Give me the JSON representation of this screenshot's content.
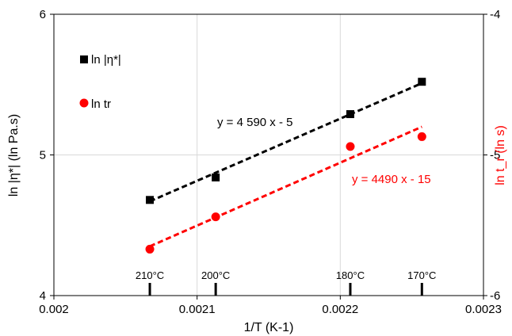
{
  "chart_data": {
    "type": "scatter",
    "xlabel": "1/T (K-1)",
    "ylabel": "ln |η*|  (ln Pa.s)",
    "y2label": "ln t_r (ln s)",
    "xlim": [
      0.002,
      0.0023
    ],
    "ylim": [
      4,
      6
    ],
    "y2lim": [
      -6,
      -4
    ],
    "grid": true,
    "x_ticks": [
      "0.002",
      "0.0021",
      "0.0022",
      "0.0023"
    ],
    "y_ticks": [
      "4",
      "5",
      "6"
    ],
    "y2_ticks": [
      "-6",
      "-5",
      "-4"
    ],
    "legend_placement": "top-left",
    "series": [
      {
        "name": "ln |η*|",
        "axis": "left",
        "marker": "square",
        "color": "#000000",
        "points": [
          {
            "x": 0.002067,
            "y": 4.68
          },
          {
            "x": 0.002113,
            "y": 4.84
          },
          {
            "x": 0.002207,
            "y": 5.29
          },
          {
            "x": 0.002257,
            "y": 5.52
          }
        ],
        "trendline": {
          "x": [
            0.002067,
            0.002257
          ],
          "y": [
            4.67,
            5.51
          ],
          "label": "y = 4 590 x - 5",
          "color": "#000000"
        }
      },
      {
        "name": "ln tr",
        "axis": "left",
        "marker": "circle",
        "color": "#ff0000",
        "points": [
          {
            "x": 0.002067,
            "y": 4.33
          },
          {
            "x": 0.002113,
            "y": 4.56
          },
          {
            "x": 0.002207,
            "y": 5.06
          },
          {
            "x": 0.002257,
            "y": 5.13
          }
        ],
        "trendline": {
          "x": [
            0.002067,
            0.002257
          ],
          "y": [
            4.35,
            5.2
          ],
          "label": "y = 4490 x - 15",
          "color": "#ff0000"
        }
      }
    ],
    "temperature_markers": [
      {
        "x": 0.002067,
        "label": "210°C"
      },
      {
        "x": 0.002113,
        "label": "200°C"
      },
      {
        "x": 0.002207,
        "label": "180°C"
      },
      {
        "x": 0.002257,
        "label": "170°C"
      }
    ]
  }
}
